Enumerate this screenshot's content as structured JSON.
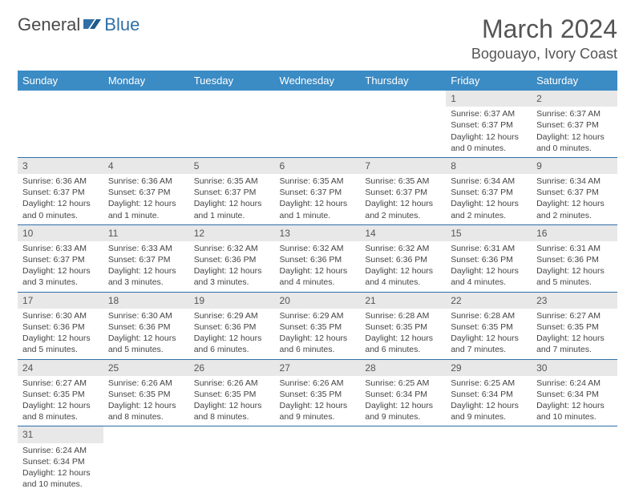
{
  "logo": {
    "general": "General",
    "blue": "Blue"
  },
  "title": "March 2024",
  "location": "Bogouayo, Ivory Coast",
  "colors": {
    "header_bg": "#3b8bc4",
    "header_text": "#ffffff",
    "row_divider": "#2f6fa7",
    "daynum_bg": "#e8e8e8",
    "text": "#444444",
    "logo_blue": "#2f6fa7"
  },
  "weekdays": [
    "Sunday",
    "Monday",
    "Tuesday",
    "Wednesday",
    "Thursday",
    "Friday",
    "Saturday"
  ],
  "weeks": [
    [
      null,
      null,
      null,
      null,
      null,
      {
        "n": "1",
        "sr": "6:37 AM",
        "ss": "6:37 PM",
        "dl": "12 hours and 0 minutes."
      },
      {
        "n": "2",
        "sr": "6:37 AM",
        "ss": "6:37 PM",
        "dl": "12 hours and 0 minutes."
      }
    ],
    [
      {
        "n": "3",
        "sr": "6:36 AM",
        "ss": "6:37 PM",
        "dl": "12 hours and 0 minutes."
      },
      {
        "n": "4",
        "sr": "6:36 AM",
        "ss": "6:37 PM",
        "dl": "12 hours and 1 minute."
      },
      {
        "n": "5",
        "sr": "6:35 AM",
        "ss": "6:37 PM",
        "dl": "12 hours and 1 minute."
      },
      {
        "n": "6",
        "sr": "6:35 AM",
        "ss": "6:37 PM",
        "dl": "12 hours and 1 minute."
      },
      {
        "n": "7",
        "sr": "6:35 AM",
        "ss": "6:37 PM",
        "dl": "12 hours and 2 minutes."
      },
      {
        "n": "8",
        "sr": "6:34 AM",
        "ss": "6:37 PM",
        "dl": "12 hours and 2 minutes."
      },
      {
        "n": "9",
        "sr": "6:34 AM",
        "ss": "6:37 PM",
        "dl": "12 hours and 2 minutes."
      }
    ],
    [
      {
        "n": "10",
        "sr": "6:33 AM",
        "ss": "6:37 PM",
        "dl": "12 hours and 3 minutes."
      },
      {
        "n": "11",
        "sr": "6:33 AM",
        "ss": "6:37 PM",
        "dl": "12 hours and 3 minutes."
      },
      {
        "n": "12",
        "sr": "6:32 AM",
        "ss": "6:36 PM",
        "dl": "12 hours and 3 minutes."
      },
      {
        "n": "13",
        "sr": "6:32 AM",
        "ss": "6:36 PM",
        "dl": "12 hours and 4 minutes."
      },
      {
        "n": "14",
        "sr": "6:32 AM",
        "ss": "6:36 PM",
        "dl": "12 hours and 4 minutes."
      },
      {
        "n": "15",
        "sr": "6:31 AM",
        "ss": "6:36 PM",
        "dl": "12 hours and 4 minutes."
      },
      {
        "n": "16",
        "sr": "6:31 AM",
        "ss": "6:36 PM",
        "dl": "12 hours and 5 minutes."
      }
    ],
    [
      {
        "n": "17",
        "sr": "6:30 AM",
        "ss": "6:36 PM",
        "dl": "12 hours and 5 minutes."
      },
      {
        "n": "18",
        "sr": "6:30 AM",
        "ss": "6:36 PM",
        "dl": "12 hours and 5 minutes."
      },
      {
        "n": "19",
        "sr": "6:29 AM",
        "ss": "6:36 PM",
        "dl": "12 hours and 6 minutes."
      },
      {
        "n": "20",
        "sr": "6:29 AM",
        "ss": "6:35 PM",
        "dl": "12 hours and 6 minutes."
      },
      {
        "n": "21",
        "sr": "6:28 AM",
        "ss": "6:35 PM",
        "dl": "12 hours and 6 minutes."
      },
      {
        "n": "22",
        "sr": "6:28 AM",
        "ss": "6:35 PM",
        "dl": "12 hours and 7 minutes."
      },
      {
        "n": "23",
        "sr": "6:27 AM",
        "ss": "6:35 PM",
        "dl": "12 hours and 7 minutes."
      }
    ],
    [
      {
        "n": "24",
        "sr": "6:27 AM",
        "ss": "6:35 PM",
        "dl": "12 hours and 8 minutes."
      },
      {
        "n": "25",
        "sr": "6:26 AM",
        "ss": "6:35 PM",
        "dl": "12 hours and 8 minutes."
      },
      {
        "n": "26",
        "sr": "6:26 AM",
        "ss": "6:35 PM",
        "dl": "12 hours and 8 minutes."
      },
      {
        "n": "27",
        "sr": "6:26 AM",
        "ss": "6:35 PM",
        "dl": "12 hours and 9 minutes."
      },
      {
        "n": "28",
        "sr": "6:25 AM",
        "ss": "6:34 PM",
        "dl": "12 hours and 9 minutes."
      },
      {
        "n": "29",
        "sr": "6:25 AM",
        "ss": "6:34 PM",
        "dl": "12 hours and 9 minutes."
      },
      {
        "n": "30",
        "sr": "6:24 AM",
        "ss": "6:34 PM",
        "dl": "12 hours and 10 minutes."
      }
    ],
    [
      {
        "n": "31",
        "sr": "6:24 AM",
        "ss": "6:34 PM",
        "dl": "12 hours and 10 minutes."
      },
      null,
      null,
      null,
      null,
      null,
      null
    ]
  ]
}
